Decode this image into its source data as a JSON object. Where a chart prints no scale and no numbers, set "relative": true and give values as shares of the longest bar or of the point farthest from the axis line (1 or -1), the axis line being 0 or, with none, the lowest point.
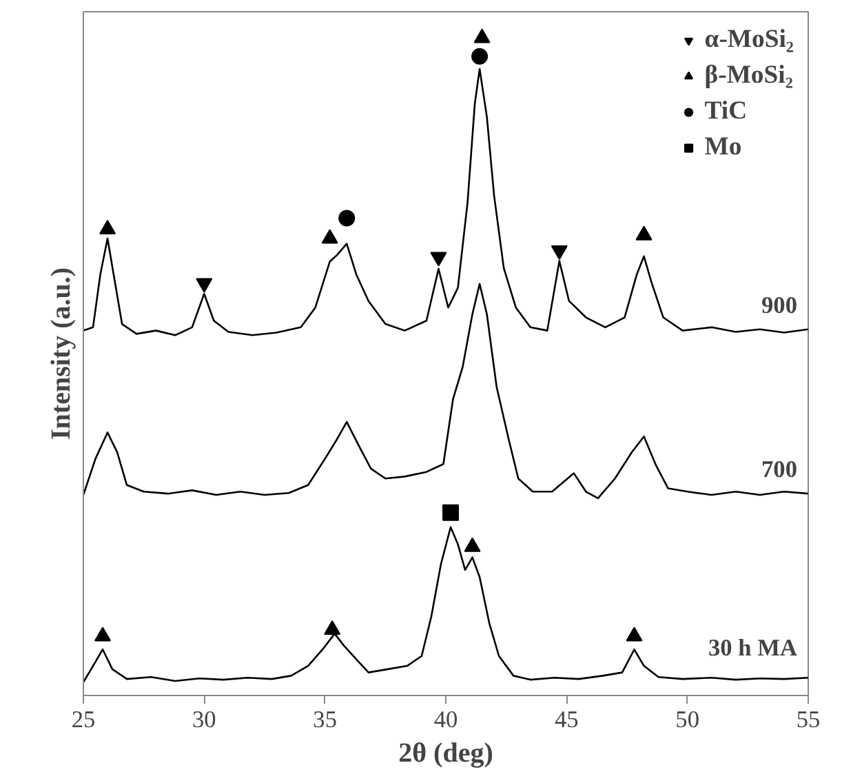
{
  "chart_data": {
    "type": "line",
    "xlabel": "2θ (deg)",
    "ylabel": "Intensity (a.u.)",
    "relative": true,
    "xlim": [
      25,
      55
    ],
    "xticks": [
      25,
      30,
      35,
      40,
      45,
      50,
      55
    ],
    "tick_labels": "x",
    "legend": "top right",
    "series": [
      {
        "name": "900",
        "color": "#000000",
        "x": [
          25.0,
          25.4,
          25.7,
          26.0,
          26.3,
          26.6,
          27.2,
          28.0,
          28.8,
          29.5,
          30.0,
          30.4,
          31.0,
          32.0,
          33.0,
          34.0,
          34.6,
          35.2,
          35.5,
          35.9,
          36.3,
          36.8,
          37.5,
          38.3,
          39.2,
          39.7,
          40.1,
          40.5,
          40.9,
          41.2,
          41.4,
          41.7,
          42.0,
          42.4,
          42.9,
          43.5,
          44.2,
          44.7,
          45.1,
          45.8,
          46.6,
          47.4,
          47.9,
          48.2,
          48.5,
          49.0,
          49.8,
          51.0,
          52.0,
          53.0,
          54.0,
          55.0
        ],
        "values": [
          0.555,
          0.56,
          0.64,
          0.695,
          0.63,
          0.565,
          0.55,
          0.555,
          0.548,
          0.56,
          0.611,
          0.57,
          0.553,
          0.548,
          0.552,
          0.56,
          0.59,
          0.66,
          0.67,
          0.687,
          0.64,
          0.6,
          0.565,
          0.555,
          0.57,
          0.649,
          0.59,
          0.62,
          0.75,
          0.9,
          0.953,
          0.88,
          0.76,
          0.65,
          0.59,
          0.56,
          0.555,
          0.661,
          0.6,
          0.575,
          0.56,
          0.575,
          0.64,
          0.668,
          0.63,
          0.575,
          0.555,
          0.56,
          0.553,
          0.557,
          0.552,
          0.557
        ]
      },
      {
        "name": "700",
        "color": "#000000",
        "x": [
          25.0,
          25.5,
          26.0,
          26.4,
          26.8,
          27.5,
          28.5,
          29.5,
          30.5,
          31.5,
          32.5,
          33.5,
          34.3,
          35.0,
          35.5,
          35.9,
          36.4,
          36.9,
          37.5,
          38.3,
          39.2,
          39.9,
          40.3,
          40.7,
          41.1,
          41.4,
          41.7,
          42.1,
          42.6,
          43.0,
          43.6,
          44.4,
          45.3,
          45.8,
          46.3,
          47.0,
          47.7,
          48.2,
          48.7,
          49.2,
          50.0,
          51.0,
          52.0,
          53.0,
          54.0,
          55.0
        ],
        "values": [
          0.305,
          0.36,
          0.4,
          0.37,
          0.32,
          0.31,
          0.307,
          0.312,
          0.305,
          0.31,
          0.305,
          0.308,
          0.32,
          0.36,
          0.39,
          0.416,
          0.38,
          0.345,
          0.33,
          0.333,
          0.34,
          0.352,
          0.451,
          0.5,
          0.58,
          0.626,
          0.58,
          0.47,
          0.39,
          0.33,
          0.31,
          0.31,
          0.338,
          0.31,
          0.3,
          0.33,
          0.37,
          0.394,
          0.35,
          0.315,
          0.31,
          0.305,
          0.31,
          0.305,
          0.31,
          0.307
        ]
      },
      {
        "name": "30 h MA",
        "color": "#000000",
        "x": [
          25.0,
          25.4,
          25.8,
          26.2,
          26.8,
          27.8,
          28.8,
          29.8,
          30.8,
          31.8,
          32.8,
          33.6,
          34.3,
          34.9,
          35.4,
          35.8,
          36.3,
          36.8,
          37.6,
          38.4,
          39.0,
          39.4,
          39.8,
          40.2,
          40.5,
          40.8,
          41.1,
          41.4,
          41.8,
          42.2,
          42.8,
          43.5,
          44.5,
          45.5,
          46.5,
          47.3,
          47.8,
          48.2,
          48.8,
          49.8,
          51.0,
          52.0,
          53.0,
          54.0,
          55.0
        ],
        "values": [
          0.02,
          0.045,
          0.07,
          0.04,
          0.025,
          0.028,
          0.022,
          0.026,
          0.024,
          0.027,
          0.025,
          0.03,
          0.045,
          0.07,
          0.094,
          0.075,
          0.055,
          0.035,
          0.04,
          0.045,
          0.06,
          0.12,
          0.2,
          0.256,
          0.23,
          0.191,
          0.21,
          0.18,
          0.11,
          0.06,
          0.03,
          0.024,
          0.027,
          0.025,
          0.03,
          0.035,
          0.07,
          0.045,
          0.028,
          0.025,
          0.027,
          0.024,
          0.026,
          0.025,
          0.027
        ]
      },
      {
        "name": "α-MoSi₂",
        "type": "scatter",
        "marker": "triangle_down",
        "color": "#000000",
        "x": [
          30.0,
          39.7,
          44.7
        ],
        "values": [
          0.627,
          0.667,
          0.677
        ]
      },
      {
        "name": "β-MoSi₂",
        "type": "scatter",
        "marker": "triangle",
        "color": "#000000",
        "x": [
          26.0,
          35.2,
          41.5,
          48.2,
          25.8,
          35.3,
          41.1,
          47.8
        ],
        "values": [
          0.709,
          0.695,
          1.0,
          0.7,
          0.09,
          0.1,
          0.226,
          0.09
        ]
      },
      {
        "name": "TiC",
        "type": "scatter",
        "marker": "circle",
        "color": "#000000",
        "x": [
          35.9,
          41.4
        ],
        "values": [
          0.726,
          0.972
        ]
      },
      {
        "name": "Mo",
        "type": "scatter",
        "marker": "square",
        "color": "#000000",
        "x": [
          40.2
        ],
        "values": [
          0.278
        ]
      }
    ]
  }
}
